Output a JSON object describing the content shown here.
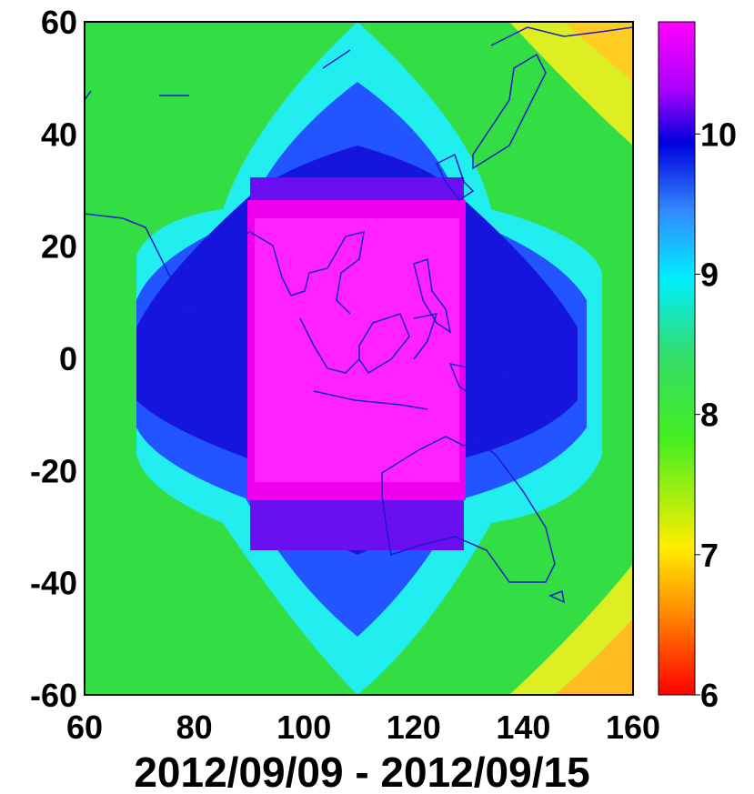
{
  "chart_data": {
    "type": "heatmap",
    "title": "2012/09/09 - 2012/09/15",
    "xlabel": "",
    "ylabel": "",
    "xlim": [
      60,
      160
    ],
    "ylim": [
      -60,
      60
    ],
    "x_ticks": [
      "60",
      "80",
      "100",
      "120",
      "140",
      "160"
    ],
    "y_ticks": [
      "60",
      "40",
      "20",
      "0",
      "-20",
      "-40",
      "-60"
    ],
    "colorbar": {
      "range": [
        6,
        10.8
      ],
      "ticks": [
        "6",
        "7",
        "8",
        "9",
        "10"
      ],
      "colormap": "hsv-like: red, orange, yellow, green, cyan, blue, magenta"
    },
    "field": {
      "description_values": "approximate mean values by region",
      "center_lon_lat": [
        110,
        5
      ],
      "core_value": 10.8,
      "core_lon_range": [
        90,
        130
      ],
      "core_lat_range": [
        -22,
        28
      ],
      "ring_values": [
        10.0,
        9.0,
        8.0,
        7.3
      ],
      "corner_value_min": 6.9,
      "land_overlay": "coastlines (Asia, Indonesia, Australia, Japan)"
    }
  }
}
